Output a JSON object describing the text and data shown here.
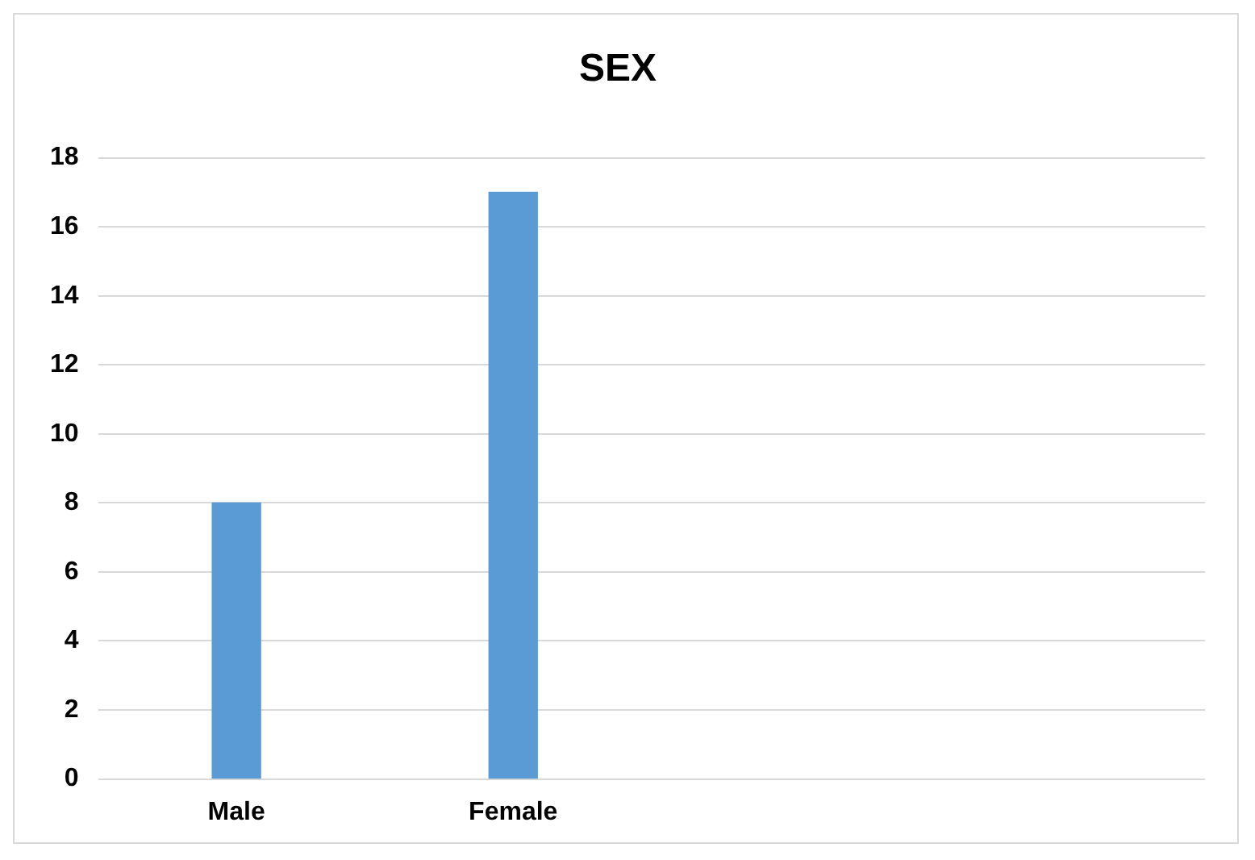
{
  "chart_data": {
    "type": "bar",
    "title": "SEX",
    "categories": [
      "Male",
      "Female",
      null,
      null
    ],
    "series": [
      {
        "color": "#5b9bd5",
        "values": [
          8,
          17,
          null,
          null
        ]
      }
    ],
    "ylim": [
      0,
      18
    ],
    "yticks": [
      0,
      2,
      4,
      6,
      8,
      10,
      12,
      14,
      16,
      18
    ],
    "grid": "y",
    "legend": false
  }
}
